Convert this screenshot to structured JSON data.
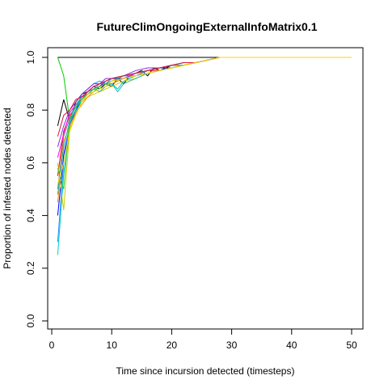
{
  "chart_data": {
    "type": "line",
    "title": "FutureClimOngoingExternalInfoMatrix0.1",
    "xlabel": "Time since incursion detected (timesteps)",
    "ylabel": "Proportion of infested nodes detected",
    "xlim": [
      0,
      50
    ],
    "ylim": [
      0,
      1
    ],
    "x_ticks": [
      "0",
      "10",
      "20",
      "30",
      "40",
      "50"
    ],
    "y_ticks": [
      "0.0",
      "0.2",
      "0.4",
      "0.6",
      "0.8",
      "1.0"
    ],
    "grid": false,
    "legend": "none",
    "series": [
      {
        "color": "#000000",
        "x": [
          1,
          50
        ],
        "values": [
          1.0,
          1.0
        ]
      },
      {
        "color": "#000000",
        "x": [
          1,
          2,
          3,
          4,
          5,
          6,
          7,
          8,
          9,
          10,
          11,
          12,
          13,
          14,
          15,
          16,
          17,
          18,
          20,
          22,
          24,
          26,
          28,
          30,
          50
        ],
        "values": [
          0.74,
          0.84,
          0.76,
          0.83,
          0.86,
          0.87,
          0.89,
          0.88,
          0.9,
          0.89,
          0.92,
          0.9,
          0.93,
          0.94,
          0.95,
          0.93,
          0.96,
          0.95,
          0.97,
          0.97,
          0.98,
          0.99,
          1.0,
          1.0,
          1.0
        ]
      },
      {
        "color": "#FF0000",
        "x": [
          1,
          2,
          3,
          4,
          5,
          6,
          7,
          8,
          9,
          10,
          12,
          14,
          16,
          18,
          20,
          22,
          24,
          26,
          28,
          30,
          50
        ],
        "values": [
          0.55,
          0.72,
          0.78,
          0.81,
          0.85,
          0.86,
          0.88,
          0.89,
          0.9,
          0.91,
          0.92,
          0.93,
          0.95,
          0.95,
          0.96,
          0.97,
          0.98,
          0.99,
          1.0,
          1.0,
          1.0
        ]
      },
      {
        "color": "#00CD00",
        "x": [
          1,
          2,
          3,
          4,
          5,
          6,
          7,
          8,
          9,
          10,
          12,
          14,
          16,
          18,
          20,
          22,
          24,
          26,
          28,
          30,
          50
        ],
        "values": [
          1.0,
          0.93,
          0.76,
          0.8,
          0.83,
          0.86,
          0.87,
          0.89,
          0.9,
          0.9,
          0.92,
          0.93,
          0.94,
          0.95,
          0.96,
          0.97,
          0.98,
          0.99,
          1.0,
          1.0,
          1.0
        ]
      },
      {
        "color": "#0000FF",
        "x": [
          1,
          2,
          3,
          4,
          5,
          6,
          7,
          8,
          9,
          10,
          12,
          14,
          16,
          18,
          20,
          22,
          24,
          26,
          28,
          30,
          50
        ],
        "values": [
          0.4,
          0.63,
          0.74,
          0.8,
          0.84,
          0.87,
          0.88,
          0.89,
          0.91,
          0.92,
          0.92,
          0.94,
          0.95,
          0.96,
          0.96,
          0.97,
          0.98,
          0.99,
          1.0,
          1.0,
          1.0
        ]
      },
      {
        "color": "#00CDCD",
        "x": [
          1,
          2,
          3,
          4,
          5,
          6,
          7,
          8,
          9,
          10,
          11,
          12,
          14,
          16,
          18,
          20,
          22,
          24,
          26,
          28,
          30,
          50
        ],
        "values": [
          0.25,
          0.56,
          0.72,
          0.79,
          0.84,
          0.86,
          0.87,
          0.88,
          0.89,
          0.9,
          0.88,
          0.91,
          0.93,
          0.94,
          0.95,
          0.96,
          0.97,
          0.98,
          0.99,
          1.0,
          1.0,
          1.0
        ]
      },
      {
        "color": "#FF00FF",
        "x": [
          1,
          2,
          3,
          4,
          5,
          6,
          7,
          8,
          9,
          10,
          12,
          14,
          16,
          18,
          20,
          22,
          24,
          26,
          28,
          30,
          50
        ],
        "values": [
          0.62,
          0.71,
          0.79,
          0.82,
          0.85,
          0.87,
          0.89,
          0.9,
          0.9,
          0.91,
          0.92,
          0.94,
          0.95,
          0.96,
          0.97,
          0.97,
          0.98,
          0.99,
          1.0,
          1.0,
          1.0
        ]
      },
      {
        "color": "#CDCD00",
        "x": [
          1,
          2,
          3,
          4,
          5,
          6,
          7,
          8,
          9,
          10,
          12,
          14,
          16,
          18,
          20,
          22,
          24,
          26,
          28,
          30,
          50
        ],
        "values": [
          0.6,
          0.42,
          0.73,
          0.78,
          0.83,
          0.85,
          0.86,
          0.87,
          0.88,
          0.89,
          0.91,
          0.92,
          0.94,
          0.95,
          0.96,
          0.97,
          0.98,
          0.99,
          1.0,
          1.0,
          1.0
        ]
      },
      {
        "color": "#808080",
        "x": [
          1,
          2,
          3,
          4,
          5,
          6,
          7,
          8,
          9,
          10,
          12,
          14,
          16,
          18,
          20,
          22,
          24,
          26,
          28,
          30,
          50
        ],
        "values": [
          0.5,
          0.7,
          0.77,
          0.82,
          0.84,
          0.87,
          0.88,
          0.9,
          0.91,
          0.92,
          0.93,
          0.94,
          0.95,
          0.96,
          0.97,
          0.98,
          0.98,
          0.99,
          1.0,
          1.0,
          1.0
        ]
      },
      {
        "color": "#1E90FF",
        "x": [
          1,
          2,
          3,
          4,
          5,
          6,
          7,
          8,
          9,
          10,
          12,
          14,
          16,
          18,
          20,
          22,
          24,
          26,
          28,
          30,
          50
        ],
        "values": [
          0.3,
          0.6,
          0.75,
          0.8,
          0.86,
          0.88,
          0.9,
          0.91,
          0.9,
          0.92,
          0.93,
          0.93,
          0.95,
          0.96,
          0.97,
          0.97,
          0.98,
          0.99,
          1.0,
          1.0,
          1.0
        ]
      },
      {
        "color": "#FF8C00",
        "x": [
          1,
          2,
          3,
          4,
          5,
          6,
          7,
          8,
          9,
          10,
          12,
          14,
          16,
          18,
          20,
          22,
          24,
          26,
          28,
          30,
          50
        ],
        "values": [
          0.45,
          0.68,
          0.74,
          0.79,
          0.82,
          0.85,
          0.87,
          0.88,
          0.89,
          0.9,
          0.92,
          0.93,
          0.94,
          0.95,
          0.96,
          0.97,
          0.98,
          0.99,
          1.0,
          1.0,
          1.0
        ]
      },
      {
        "color": "#32CD32",
        "x": [
          1,
          2,
          3,
          4,
          5,
          6,
          7,
          8,
          9,
          10,
          12,
          14,
          16,
          18,
          20,
          22,
          24,
          26,
          28,
          30,
          50
        ],
        "values": [
          0.58,
          0.5,
          0.77,
          0.81,
          0.84,
          0.86,
          0.88,
          0.89,
          0.9,
          0.91,
          0.93,
          0.94,
          0.95,
          0.96,
          0.97,
          0.97,
          0.98,
          0.99,
          1.0,
          1.0,
          1.0
        ]
      },
      {
        "color": "#8A2BE2",
        "x": [
          1,
          2,
          3,
          4,
          5,
          6,
          7,
          8,
          9,
          10,
          12,
          14,
          16,
          18,
          20,
          22,
          24,
          26,
          28,
          30,
          50
        ],
        "values": [
          0.66,
          0.74,
          0.8,
          0.83,
          0.86,
          0.88,
          0.9,
          0.9,
          0.92,
          0.92,
          0.93,
          0.95,
          0.96,
          0.96,
          0.97,
          0.98,
          0.98,
          0.99,
          1.0,
          1.0,
          1.0
        ]
      },
      {
        "color": "#20B2AA",
        "x": [
          1,
          2,
          3,
          4,
          5,
          6,
          7,
          8,
          9,
          10,
          11,
          12,
          14,
          16,
          18,
          20,
          22,
          24,
          26,
          28,
          30,
          50
        ],
        "values": [
          0.48,
          0.66,
          0.76,
          0.82,
          0.85,
          0.87,
          0.88,
          0.87,
          0.89,
          0.9,
          0.87,
          0.9,
          0.92,
          0.94,
          0.95,
          0.96,
          0.97,
          0.98,
          0.99,
          1.0,
          1.0,
          1.0
        ]
      },
      {
        "color": "#DC143C",
        "x": [
          1,
          2,
          3,
          4,
          5,
          6,
          7,
          8,
          9,
          10,
          12,
          14,
          16,
          18,
          20,
          22,
          24,
          26,
          28,
          30,
          50
        ],
        "values": [
          0.7,
          0.78,
          0.8,
          0.84,
          0.85,
          0.87,
          0.89,
          0.9,
          0.91,
          0.92,
          0.93,
          0.94,
          0.95,
          0.96,
          0.97,
          0.98,
          0.98,
          0.99,
          1.0,
          1.0,
          1.0
        ]
      },
      {
        "color": "#FFD700",
        "x": [
          1,
          2,
          3,
          4,
          5,
          6,
          7,
          8,
          9,
          10,
          12,
          14,
          16,
          18,
          20,
          22,
          24,
          26,
          28,
          30,
          50
        ],
        "values": [
          0.52,
          0.6,
          0.72,
          0.78,
          0.83,
          0.86,
          0.87,
          0.88,
          0.89,
          0.91,
          0.92,
          0.93,
          0.94,
          0.95,
          0.96,
          0.97,
          0.98,
          0.99,
          1.0,
          1.0,
          1.0
        ]
      }
    ]
  }
}
